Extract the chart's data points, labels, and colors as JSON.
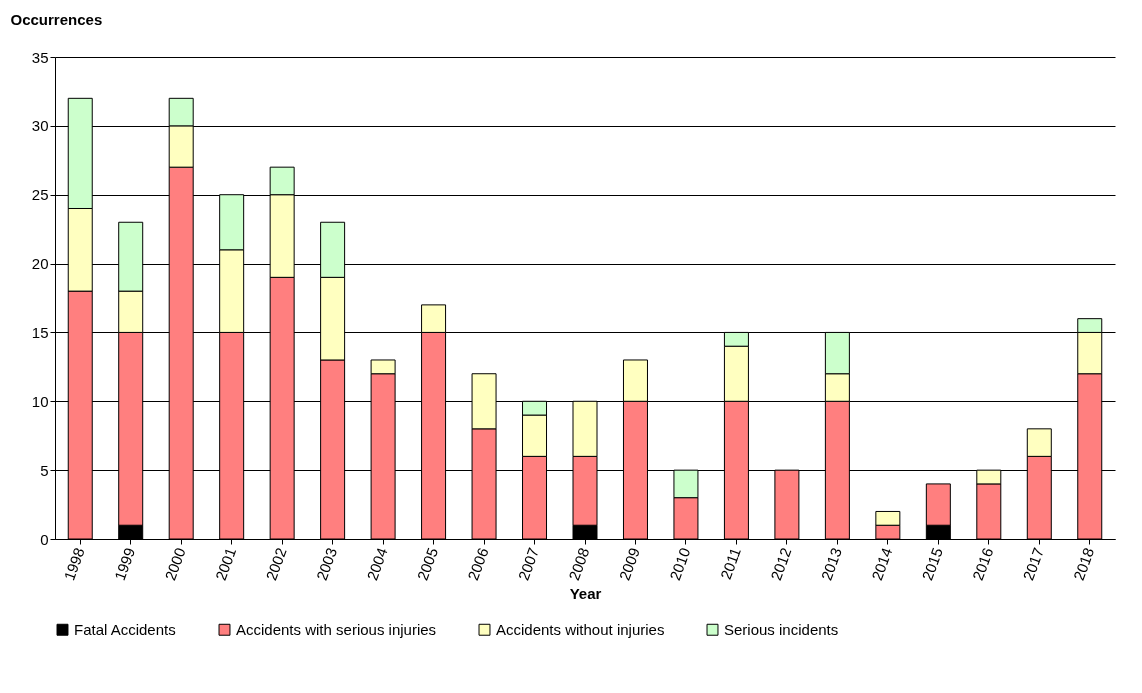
{
  "chart_data": {
    "type": "bar",
    "stacked": true,
    "xlabel": "Year",
    "ylabel": "Occurrences",
    "categories": [
      "1998",
      "1999",
      "2000",
      "2001",
      "2002",
      "2003",
      "2004",
      "2005",
      "2006",
      "2007",
      "2008",
      "2009",
      "2010",
      "2011",
      "2012",
      "2013",
      "2014",
      "2015",
      "2016",
      "2017",
      "2018"
    ],
    "series": [
      {
        "name": "Fatal Accidents",
        "color": "#000000",
        "values": [
          0,
          1,
          0,
          0,
          0,
          0,
          0,
          0,
          0,
          0,
          1,
          0,
          0,
          0,
          0,
          0,
          0,
          1,
          0,
          0,
          0
        ]
      },
      {
        "name": "Accidents with serious injuries",
        "color": "#ff7f7f",
        "values": [
          18,
          14,
          27,
          15,
          19,
          13,
          12,
          15,
          8,
          6,
          5,
          10,
          3,
          10,
          5,
          10,
          1,
          3,
          4,
          6,
          12
        ]
      },
      {
        "name": "Accidents without injuries",
        "color": "#ffffc0",
        "values": [
          6,
          3,
          3,
          6,
          6,
          6,
          1,
          2,
          4,
          3,
          4,
          3,
          0,
          4,
          0,
          2,
          1,
          0,
          1,
          2,
          3
        ]
      },
      {
        "name": "Serious incidents",
        "color": "#ccffcc",
        "values": [
          8,
          5,
          2,
          4,
          2,
          4,
          0,
          0,
          0,
          1,
          0,
          0,
          2,
          1,
          0,
          3,
          0,
          0,
          0,
          0,
          1
        ]
      }
    ],
    "ylim": [
      0,
      35
    ],
    "yticks": [
      0,
      5,
      10,
      15,
      20,
      25,
      30,
      35
    ],
    "grid": "y",
    "legend": "bottom"
  }
}
